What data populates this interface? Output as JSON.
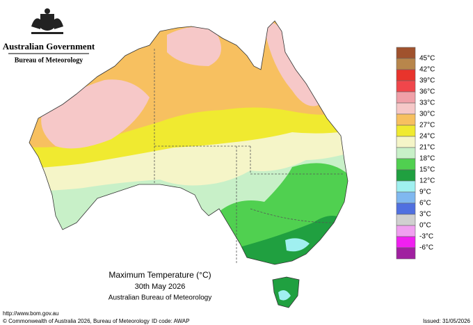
{
  "header": {
    "government": "Australian Government",
    "agency": "Bureau of Meteorology"
  },
  "map": {
    "title": "Maximum Temperature (°C)",
    "date": "30th May 2026",
    "source": "Australian Bureau of Meteorology"
  },
  "legend": [
    {
      "label": "45°C",
      "color": "#a0522d"
    },
    {
      "label": "42°C",
      "color": "#b8864b"
    },
    {
      "label": "39°C",
      "color": "#e8342c"
    },
    {
      "label": "36°C",
      "color": "#f0464b"
    },
    {
      "label": "33°C",
      "color": "#f0a0a8"
    },
    {
      "label": "30°C",
      "color": "#f6c8c8"
    },
    {
      "label": "27°C",
      "color": "#f7c060"
    },
    {
      "label": "24°C",
      "color": "#f0ea30"
    },
    {
      "label": "21°C",
      "color": "#f5f5c8"
    },
    {
      "label": "18°C",
      "color": "#c8f0c8"
    },
    {
      "label": "15°C",
      "color": "#50d050"
    },
    {
      "label": "12°C",
      "color": "#20a040"
    },
    {
      "label": "9°C",
      "color": "#a0f0f0"
    },
    {
      "label": "6°C",
      "color": "#80b8f0"
    },
    {
      "label": "3°C",
      "color": "#5070e0"
    },
    {
      "label": "0°C",
      "color": "#d0d0d0"
    },
    {
      "label": "-3°C",
      "color": "#f0a0f0"
    },
    {
      "label": "-6°C",
      "color": "#f020f0"
    },
    {
      "label": "",
      "color": "#a020a0"
    }
  ],
  "footer": {
    "url": "http://www.bom.gov.au",
    "copyright": "© Commonwealth of Australia 2026, Bureau of Meteorology",
    "id_code": "ID code: AWAP",
    "issued": "Issued: 31/05/2026"
  }
}
